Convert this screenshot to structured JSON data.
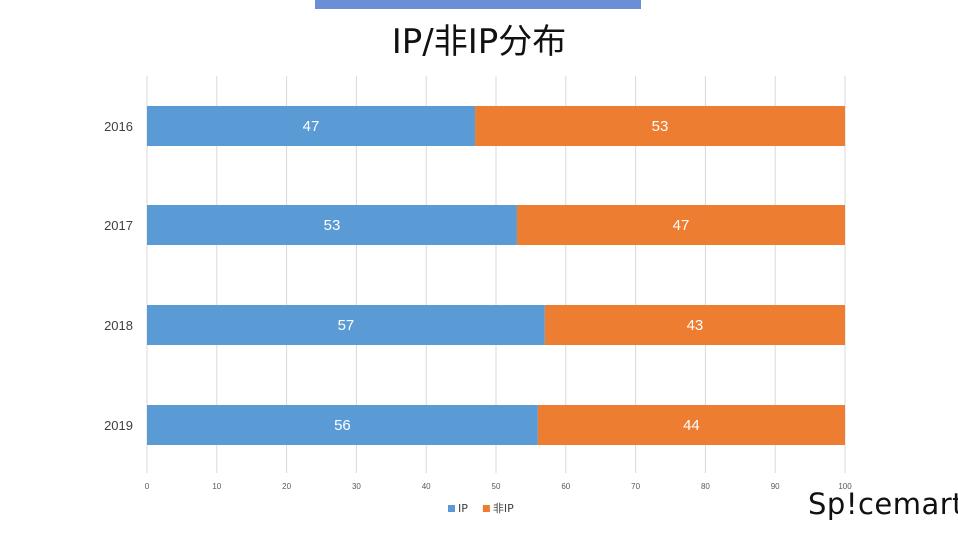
{
  "header": {
    "accent_color": "#6b8fd6"
  },
  "title": "IP/非IP分布",
  "logo": "Sp!cemart",
  "colors": {
    "IP": "#5b9bd5",
    "非IP": "#ed7d31",
    "grid": "#d9d9d9"
  },
  "chart_data": {
    "type": "bar",
    "orientation": "horizontal",
    "stacked": true,
    "categories": [
      "2016",
      "2017",
      "2018",
      "2019"
    ],
    "series": [
      {
        "name": "IP",
        "values": [
          47,
          53,
          57,
          56
        ]
      },
      {
        "name": "非IP",
        "values": [
          53,
          47,
          43,
          44
        ]
      }
    ],
    "xlim": [
      0,
      100
    ],
    "x_ticks": [
      0,
      10,
      20,
      30,
      40,
      50,
      60,
      70,
      80,
      90,
      100
    ],
    "grid": true,
    "legend_position": "bottom",
    "data_labels": true
  }
}
